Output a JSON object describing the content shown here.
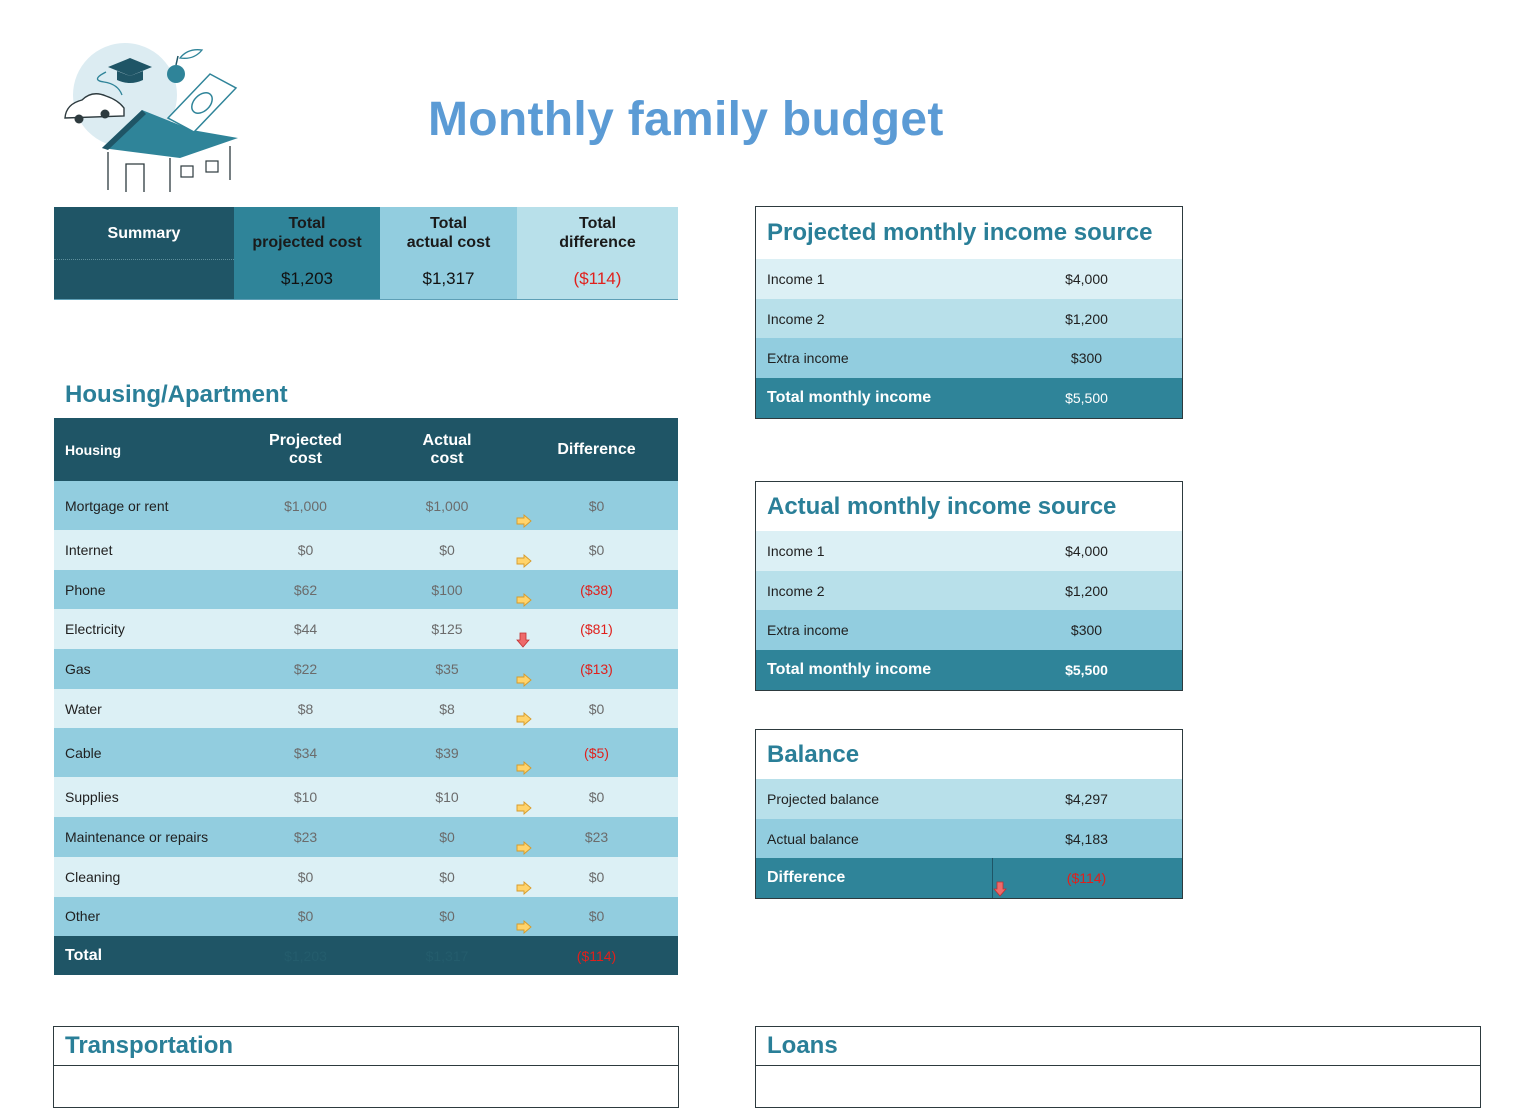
{
  "title": "Monthly family budget",
  "logo_icon": "family-house-illustration",
  "colors": {
    "title": "#5b9bd5",
    "heading": "#2a7f98",
    "dark": "#1f5566",
    "teal": "#2f8499",
    "mid": "#92cddf",
    "light": "#dcf0f5",
    "negative": "#e0201c"
  },
  "summary": {
    "label": "Summary",
    "headers": [
      "Total projected cost",
      "Total actual cost",
      "Total difference"
    ],
    "header_lines": [
      [
        "Total",
        "projected cost"
      ],
      [
        "Total",
        "actual cost"
      ],
      [
        "Total",
        "difference"
      ]
    ],
    "values": [
      "$1,203",
      "$1,317",
      "($114)"
    ]
  },
  "housing": {
    "heading": "Housing/Apartment",
    "columns": {
      "name": "Housing",
      "projected": [
        "Projected",
        "cost"
      ],
      "actual": [
        "Actual",
        "cost"
      ],
      "difference": "Difference"
    },
    "rows": [
      {
        "name": "Mortgage or rent",
        "projected": "$1,000",
        "actual": "$1,000",
        "difference": "$0",
        "negative": false,
        "icon": "arrow-right-icon"
      },
      {
        "name": "Internet",
        "projected": "$0",
        "actual": "$0",
        "difference": "$0",
        "negative": false,
        "icon": "arrow-right-icon"
      },
      {
        "name": "Phone",
        "projected": "$62",
        "actual": "$100",
        "difference": "($38)",
        "negative": true,
        "icon": "arrow-right-icon"
      },
      {
        "name": "Electricity",
        "projected": "$44",
        "actual": "$125",
        "difference": "($81)",
        "negative": true,
        "icon": "arrow-down-icon"
      },
      {
        "name": "Gas",
        "projected": "$22",
        "actual": "$35",
        "difference": "($13)",
        "negative": true,
        "icon": "arrow-right-icon"
      },
      {
        "name": "Water",
        "projected": "$8",
        "actual": "$8",
        "difference": "$0",
        "negative": false,
        "icon": "arrow-right-icon"
      },
      {
        "name": "Cable",
        "projected": "$34",
        "actual": "$39",
        "difference": "($5)",
        "negative": true,
        "icon": "arrow-right-icon"
      },
      {
        "name": "Supplies",
        "projected": "$10",
        "actual": "$10",
        "difference": "$0",
        "negative": false,
        "icon": "arrow-right-icon"
      },
      {
        "name": "Maintenance or repairs",
        "projected": "$23",
        "actual": "$0",
        "difference": "$23",
        "negative": false,
        "icon": "arrow-right-icon"
      },
      {
        "name": "Cleaning",
        "projected": "$0",
        "actual": "$0",
        "difference": "$0",
        "negative": false,
        "icon": "arrow-right-icon"
      },
      {
        "name": "Other",
        "projected": "$0",
        "actual": "$0",
        "difference": "$0",
        "negative": false,
        "icon": "arrow-right-icon"
      }
    ],
    "total": {
      "label": "Total",
      "projected": "$1,203",
      "actual": "$1,317",
      "difference": "($114)"
    }
  },
  "projected_income": {
    "title": "Projected monthly income source",
    "rows": [
      {
        "name": "Income 1",
        "value": "$4,000"
      },
      {
        "name": "Income 2",
        "value": "$1,200"
      },
      {
        "name": "Extra income",
        "value": "$300"
      }
    ],
    "total": {
      "name": "Total monthly income",
      "value": "$5,500"
    }
  },
  "actual_income": {
    "title": "Actual monthly income source",
    "rows": [
      {
        "name": "Income 1",
        "value": "$4,000"
      },
      {
        "name": "Income 2",
        "value": "$1,200"
      },
      {
        "name": "Extra income",
        "value": "$300"
      }
    ],
    "total": {
      "name": "Total monthly income",
      "value": "$5,500"
    }
  },
  "balance": {
    "title": "Balance",
    "rows": [
      {
        "name": "Projected balance",
        "value": "$4,297"
      },
      {
        "name": "Actual balance",
        "value": "$4,183"
      }
    ],
    "difference": {
      "name": "Difference",
      "value": "($114)",
      "icon": "arrow-down-icon"
    }
  },
  "transportation": {
    "title": "Transportation"
  },
  "loans": {
    "title": "Loans"
  }
}
